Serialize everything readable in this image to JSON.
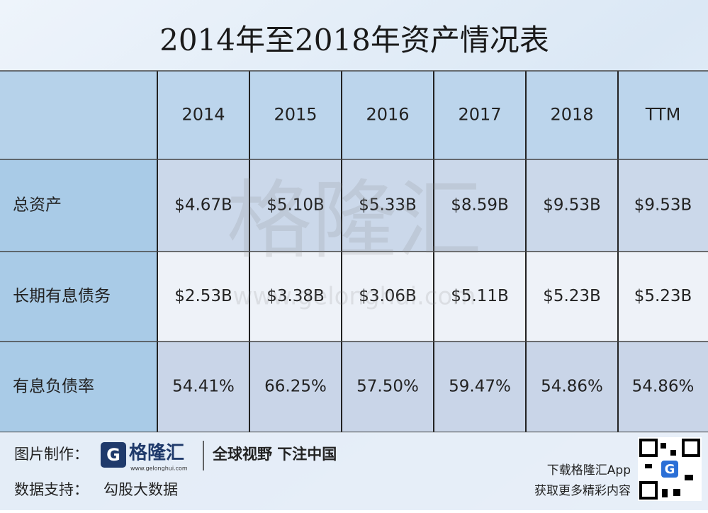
{
  "title": "2014年至2018年资产情况表",
  "table": {
    "columns": [
      "2014",
      "2015",
      "2016",
      "2017",
      "2018",
      "TTM"
    ],
    "rows": [
      {
        "label": "总资产",
        "values": [
          "$4.67B",
          "$5.10B",
          "$5.33B",
          "$8.59B",
          "$9.53B",
          "$9.53B"
        ]
      },
      {
        "label": "长期有息债务",
        "values": [
          "$2.53B",
          "$3.38B",
          "$3.06B",
          "$5.11B",
          "$5.23B",
          "$5.23B"
        ]
      },
      {
        "label": "有息负债率",
        "values": [
          "54.41%",
          "66.25%",
          "57.50%",
          "59.47%",
          "54.86%",
          "54.86%"
        ]
      }
    ]
  },
  "watermark": {
    "text": "格隆汇",
    "url": "www.gelonghui.com"
  },
  "footer": {
    "credit_label": "图片制作：",
    "logo": "格隆汇",
    "logo_url": "www.gelonghui.com",
    "slogan": "全球视野 下注中国",
    "data_source_label": "数据支持：",
    "data_source": "勾股大数据",
    "app_line1": "下载格隆汇App",
    "app_line2": "获取更多精彩内容"
  }
}
